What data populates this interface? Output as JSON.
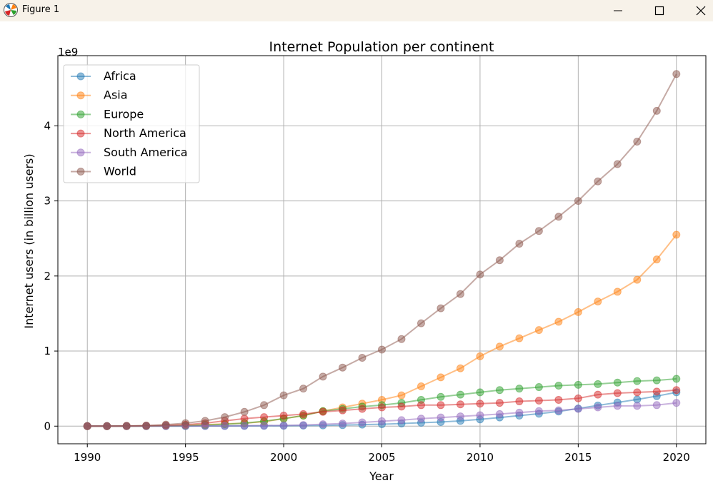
{
  "window": {
    "title": "Figure 1",
    "icons": [
      "matplotlib-logo-icon",
      "minimize-icon",
      "maximize-icon",
      "close-icon"
    ]
  },
  "chart_data": {
    "type": "line",
    "title": "Internet Population per continent",
    "xlabel": "Year",
    "ylabel": "Internet users (in billion users)",
    "offset_text": "1e9",
    "x": [
      1990,
      1991,
      1992,
      1993,
      1994,
      1995,
      1996,
      1997,
      1998,
      1999,
      2000,
      2001,
      2002,
      2003,
      2004,
      2005,
      2006,
      2007,
      2008,
      2009,
      2010,
      2011,
      2012,
      2013,
      2014,
      2015,
      2016,
      2017,
      2018,
      2019,
      2020
    ],
    "xlim": [
      1988.5,
      2021.5
    ],
    "ylim": [
      -0.235,
      4.935
    ],
    "xticks": [
      1990,
      1995,
      2000,
      2005,
      2010,
      2015,
      2020
    ],
    "yticks": [
      0,
      1,
      2,
      3,
      4
    ],
    "grid": true,
    "legend_position": "upper-left",
    "marker": "circle",
    "series": [
      {
        "name": "Africa",
        "color": "#1f77b4",
        "values": [
          0,
          0,
          0,
          0,
          0.001,
          0.001,
          0.002,
          0.002,
          0.003,
          0.004,
          0.005,
          0.007,
          0.01,
          0.014,
          0.02,
          0.025,
          0.035,
          0.045,
          0.055,
          0.07,
          0.09,
          0.115,
          0.14,
          0.165,
          0.195,
          0.235,
          0.275,
          0.315,
          0.355,
          0.4,
          0.45
        ]
      },
      {
        "name": "Asia",
        "color": "#ff7f0e",
        "values": [
          0,
          0,
          0.001,
          0.002,
          0.005,
          0.01,
          0.02,
          0.03,
          0.04,
          0.06,
          0.1,
          0.14,
          0.2,
          0.25,
          0.3,
          0.35,
          0.41,
          0.53,
          0.65,
          0.77,
          0.93,
          1.06,
          1.17,
          1.28,
          1.39,
          1.52,
          1.66,
          1.79,
          1.95,
          2.22,
          2.55
        ]
      },
      {
        "name": "Europe",
        "color": "#2ca02c",
        "values": [
          0,
          0,
          0.001,
          0.002,
          0.004,
          0.007,
          0.015,
          0.025,
          0.04,
          0.065,
          0.1,
          0.14,
          0.2,
          0.23,
          0.26,
          0.28,
          0.31,
          0.35,
          0.39,
          0.42,
          0.45,
          0.48,
          0.5,
          0.52,
          0.54,
          0.55,
          0.56,
          0.58,
          0.6,
          0.61,
          0.63
        ]
      },
      {
        "name": "North America",
        "color": "#d62728",
        "values": [
          0,
          0,
          0.002,
          0.005,
          0.01,
          0.02,
          0.04,
          0.07,
          0.1,
          0.12,
          0.14,
          0.16,
          0.19,
          0.21,
          0.23,
          0.25,
          0.26,
          0.28,
          0.28,
          0.29,
          0.3,
          0.31,
          0.33,
          0.34,
          0.35,
          0.37,
          0.42,
          0.44,
          0.45,
          0.46,
          0.48
        ]
      },
      {
        "name": "South America",
        "color": "#9467bd",
        "values": [
          0,
          0,
          0,
          0,
          0.001,
          0.002,
          0.003,
          0.004,
          0.006,
          0.008,
          0.01,
          0.015,
          0.025,
          0.035,
          0.05,
          0.065,
          0.08,
          0.1,
          0.115,
          0.13,
          0.145,
          0.16,
          0.18,
          0.2,
          0.21,
          0.23,
          0.25,
          0.27,
          0.27,
          0.28,
          0.31
        ]
      },
      {
        "name": "World",
        "color": "#8c564b",
        "values": [
          0,
          0,
          0.003,
          0.007,
          0.02,
          0.04,
          0.07,
          0.12,
          0.19,
          0.28,
          0.41,
          0.5,
          0.66,
          0.78,
          0.91,
          1.02,
          1.16,
          1.37,
          1.57,
          1.76,
          2.02,
          2.21,
          2.43,
          2.6,
          2.79,
          3.0,
          3.26,
          3.49,
          3.79,
          4.2,
          4.69
        ]
      }
    ]
  }
}
